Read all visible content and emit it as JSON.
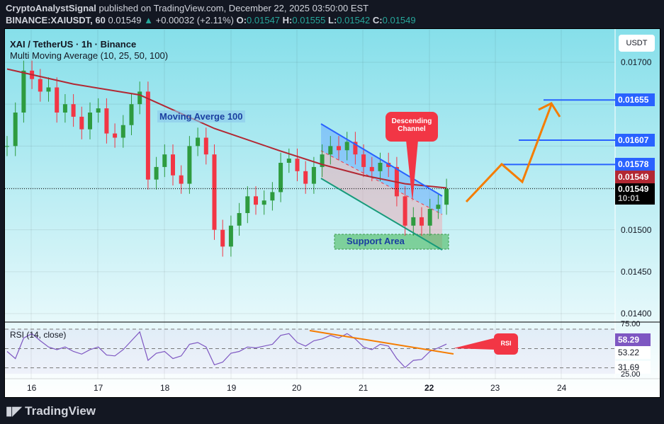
{
  "header": {
    "publisher": "CryptoAnalystSignal",
    "published_text": "published on TradingView.com, December 22, 2025 03:50:00 EST",
    "symbol": "BINANCE:XAIUSDT, 60",
    "last": "0.01549",
    "change": "+0.00032 (+2.11%)",
    "o_label": "O:",
    "o": "0.01547",
    "h_label": "H:",
    "h": "0.01555",
    "l_label": "L:",
    "l": "0.01542",
    "c_label": "C:",
    "c": "0.01549"
  },
  "legend": {
    "title": "XAI / TetherUS · 1h · Binance",
    "indicator": "Multi Moving Average (10, 25, 50, 100)",
    "rsi": "RSI (14, close)"
  },
  "currency": "USDT",
  "annotations": {
    "ma_label": "Moving Averge 100",
    "channel_label": "Descending Channel",
    "support_label": "Support Area",
    "rsi_callout": "RSI"
  },
  "price_tags": {
    "t1": "0.01655",
    "t2": "0.01607",
    "t3": "0.01578",
    "ma": "0.01549",
    "last": "0.01549",
    "countdown": "10:01",
    "rsi_last": "58.29",
    "rsi_a": "53.22",
    "rsi_b": "31.69",
    "rsi_top": "75.00",
    "rsi_bot": "25.00"
  },
  "colors": {
    "up": "#2e9b3f",
    "down": "#f23645",
    "ma100": "#b22833",
    "target": "#2962ff",
    "projection": "#f57c00",
    "rsi": "#7e57c2",
    "callout": "#f23645"
  },
  "footer": {
    "brand": "TradingView"
  },
  "chart_data": {
    "type": "candlestick",
    "y_axis": {
      "ticks": [
        "0.01700",
        "0.01500",
        "0.01450",
        "0.01400"
      ],
      "range": [
        0.0138,
        0.01735
      ]
    },
    "x_axis": {
      "ticks": [
        "16",
        "17",
        "18",
        "19",
        "20",
        "21",
        "22",
        "23",
        "24"
      ]
    },
    "time": [
      "Dec 15 15:00",
      "Dec 15 18:00",
      "Dec 15 21:00",
      "Dec 16 00:00",
      "Dec 16 03:00",
      "Dec 16 06:00",
      "Dec 16 09:00",
      "Dec 16 12:00",
      "Dec 16 15:00",
      "Dec 16 18:00",
      "Dec 16 21:00",
      "Dec 17 00:00",
      "Dec 17 03:00",
      "Dec 17 06:00",
      "Dec 17 09:00",
      "Dec 17 12:00",
      "Dec 17 15:00",
      "Dec 17 18:00",
      "Dec 17 21:00",
      "Dec 18 00:00",
      "Dec 18 03:00",
      "Dec 18 06:00",
      "Dec 18 09:00",
      "Dec 18 12:00",
      "Dec 18 15:00",
      "Dec 18 18:00",
      "Dec 18 21:00",
      "Dec 19 00:00",
      "Dec 19 03:00",
      "Dec 19 06:00",
      "Dec 19 09:00",
      "Dec 19 12:00",
      "Dec 19 15:00",
      "Dec 19 18:00",
      "Dec 19 21:00",
      "Dec 20 00:00",
      "Dec 20 03:00",
      "Dec 20 06:00",
      "Dec 20 09:00",
      "Dec 20 12:00",
      "Dec 20 15:00",
      "Dec 20 18:00",
      "Dec 20 21:00",
      "Dec 21 00:00",
      "Dec 21 03:00",
      "Dec 21 06:00",
      "Dec 21 09:00",
      "Dec 21 12:00",
      "Dec 21 15:00",
      "Dec 21 18:00",
      "Dec 21 21:00",
      "Dec 22 00:00",
      "Dec 22 03:00",
      "Dec 22 06:00"
    ],
    "close": [
      0.016,
      0.0164,
      0.0169,
      0.0168,
      0.01665,
      0.0167,
      0.0164,
      0.0165,
      0.01635,
      0.0162,
      0.0164,
      0.01645,
      0.01615,
      0.0161,
      0.01625,
      0.0165,
      0.01665,
      0.0156,
      0.01575,
      0.0159,
      0.01565,
      0.01555,
      0.016,
      0.0161,
      0.0159,
      0.015,
      0.0148,
      0.01505,
      0.0152,
      0.0154,
      0.0153,
      0.01535,
      0.01545,
      0.0158,
      0.01585,
      0.0157,
      0.01555,
      0.01575,
      0.0159,
      0.016,
      0.01595,
      0.01605,
      0.0159,
      0.01575,
      0.0157,
      0.0158,
      0.01575,
      0.0154,
      0.01505,
      0.01515,
      0.01505,
      0.01525,
      0.0153,
      0.01549
    ],
    "ma100": {
      "name": "Moving Averge 100",
      "index": [
        0,
        8,
        16,
        25,
        33,
        38,
        43,
        48,
        53
      ],
      "values": [
        0.01692,
        0.01674,
        0.01661,
        0.01621,
        0.01594,
        0.01578,
        0.01565,
        0.01555,
        0.0155
      ]
    },
    "rsi": {
      "name": "RSI (14, close)",
      "levels": [
        75,
        53.22,
        31.69,
        25
      ],
      "values": [
        50,
        42,
        65,
        70,
        62,
        55,
        52,
        55,
        50,
        47,
        52,
        55,
        46,
        45,
        52,
        62,
        72,
        40,
        48,
        50,
        42,
        45,
        58,
        60,
        55,
        35,
        38,
        48,
        50,
        55,
        54,
        56,
        58,
        68,
        70,
        60,
        56,
        62,
        64,
        68,
        65,
        70,
        64,
        55,
        52,
        58,
        56,
        42,
        32,
        40,
        41,
        50,
        54,
        58.29
      ]
    },
    "targets": [
      0.01578,
      0.01607,
      0.01655
    ],
    "support_area": [
      0.01485,
      0.015
    ]
  }
}
